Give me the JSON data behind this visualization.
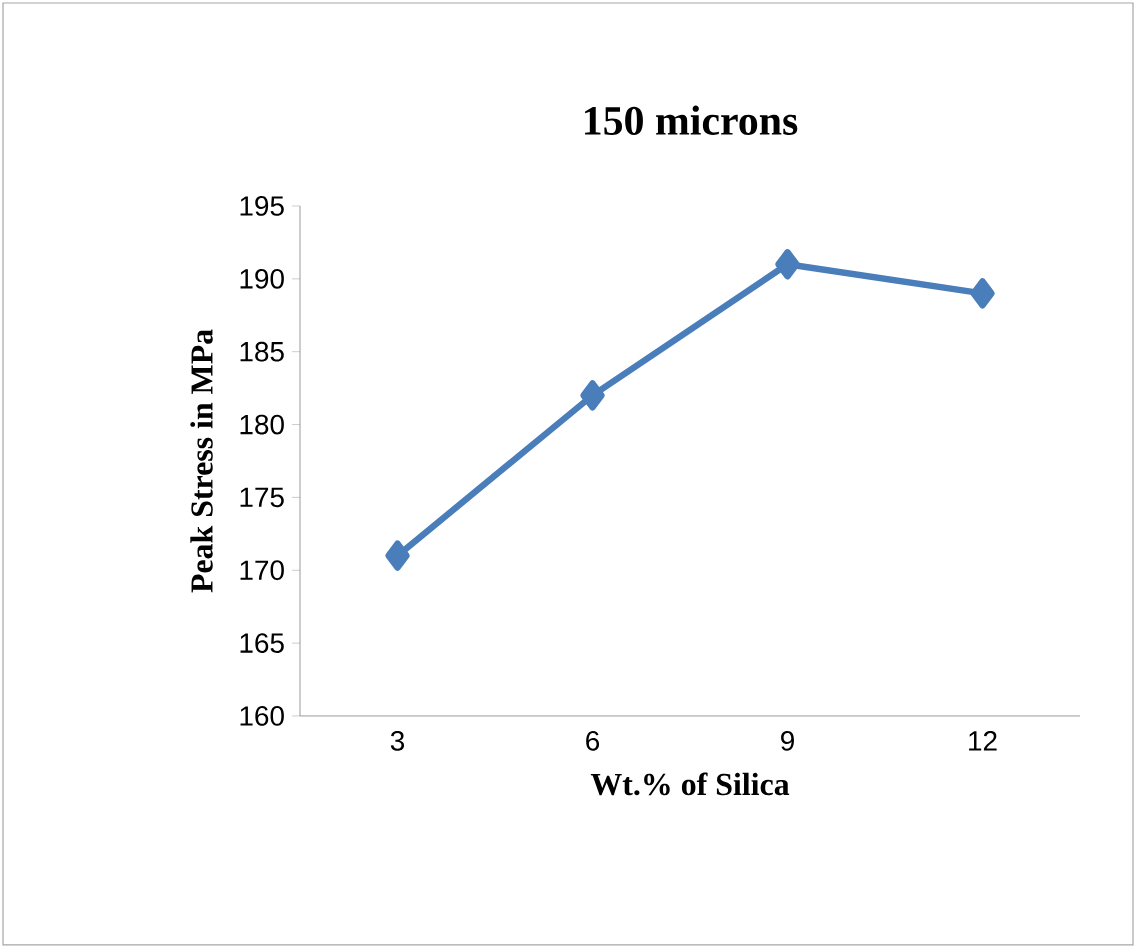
{
  "chart_data": {
    "type": "line",
    "title": "150 microns",
    "xlabel": "Wt.% of Silica",
    "ylabel": "Peak Stress in MPa",
    "categories": [
      "3",
      "6",
      "9",
      "12"
    ],
    "series": [
      {
        "color": "#4a7ebb",
        "values": [
          171,
          182,
          191,
          189
        ]
      }
    ],
    "ylim": [
      160,
      195
    ],
    "yticks": [
      160,
      165,
      170,
      175,
      180,
      185,
      190,
      195
    ],
    "grid": false,
    "marker": "diamond",
    "line_style": "solid"
  }
}
